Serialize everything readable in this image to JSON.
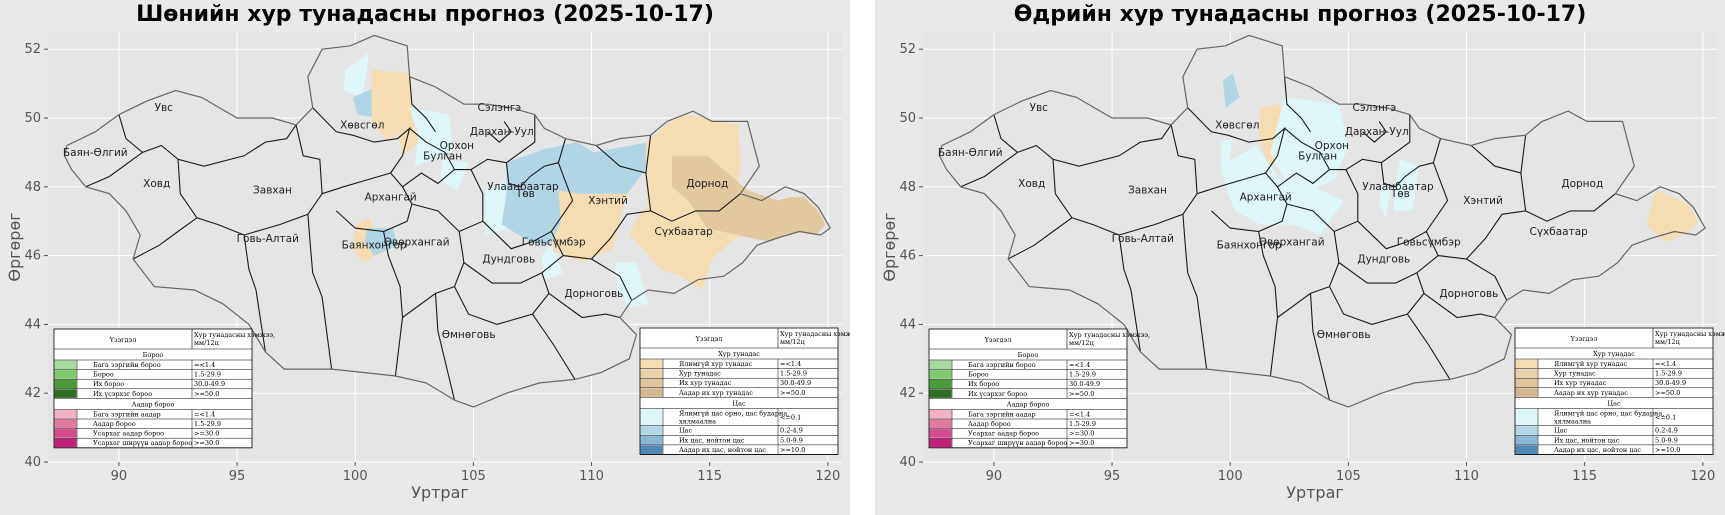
{
  "panels": [
    {
      "id": "night",
      "title": "Шөнийн хур тунадасны прогноз (2025-10-17)",
      "zones": [
        {
          "kind": "snow_light",
          "pts": [
            [
              99.6,
              51.4
            ],
            [
              100.6,
              51.9
            ],
            [
              100.3,
              50.6
            ],
            [
              99.5,
              50.8
            ]
          ]
        },
        {
          "kind": "snow_med",
          "pts": [
            [
              99.9,
              50.6
            ],
            [
              100.9,
              50.9
            ],
            [
              101.0,
              50.0
            ],
            [
              100.1,
              50.1
            ]
          ]
        },
        {
          "kind": "rain_light",
          "pts": [
            [
              100.7,
              51.4
            ],
            [
              102.3,
              51.3
            ],
            [
              102.4,
              50.0
            ],
            [
              101.4,
              49.3
            ],
            [
              100.7,
              49.9
            ]
          ]
        },
        {
          "kind": "rain_light",
          "pts": [
            [
              102.3,
              50.2
            ],
            [
              102.7,
              49.3
            ],
            [
              102.0,
              48.9
            ],
            [
              101.8,
              49.6
            ]
          ]
        },
        {
          "kind": "snow_light",
          "pts": [
            [
              102.3,
              50.3
            ],
            [
              104.0,
              50.1
            ],
            [
              104.1,
              49.0
            ],
            [
              102.5,
              48.6
            ],
            [
              102.7,
              49.5
            ]
          ]
        },
        {
          "kind": "snow_light",
          "pts": [
            [
              103.7,
              48.8
            ],
            [
              104.8,
              48.7
            ],
            [
              104.3,
              47.9
            ],
            [
              103.6,
              48.2
            ]
          ]
        },
        {
          "kind": "snow_light",
          "pts": [
            [
              105.5,
              47.9
            ],
            [
              106.8,
              48.3
            ],
            [
              106.5,
              46.8
            ],
            [
              105.5,
              46.6
            ]
          ]
        },
        {
          "kind": "snow_med",
          "pts": [
            [
              106.4,
              48.7
            ],
            [
              108.0,
              49.1
            ],
            [
              109.4,
              49.3
            ],
            [
              110.1,
              49.0
            ],
            [
              112.4,
              49.3
            ],
            [
              112.4,
              48.6
            ],
            [
              111.5,
              47.8
            ],
            [
              109.3,
              47.2
            ],
            [
              108.3,
              46.3
            ],
            [
              107.4,
              46.4
            ],
            [
              106.2,
              46.9
            ],
            [
              106.4,
              47.8
            ]
          ]
        },
        {
          "kind": "rain_light",
          "pts": [
            [
              108.6,
              47.9
            ],
            [
              109.5,
              47.8
            ],
            [
              111.5,
              47.8
            ],
            [
              110.9,
              46.2
            ],
            [
              109.6,
              45.8
            ],
            [
              108.2,
              46.2
            ],
            [
              108.7,
              47.0
            ]
          ]
        },
        {
          "kind": "snow_light",
          "pts": [
            [
              108.3,
              46.3
            ],
            [
              108.8,
              45.5
            ],
            [
              108.0,
              45.3
            ],
            [
              107.9,
              46.0
            ]
          ]
        },
        {
          "kind": "snow_light",
          "pts": [
            [
              111.0,
              45.8
            ],
            [
              111.9,
              45.8
            ],
            [
              112.4,
              44.6
            ],
            [
              111.6,
              44.5
            ],
            [
              111.1,
              45.0
            ]
          ]
        },
        {
          "kind": "rain_light",
          "pts": [
            [
              112.3,
              49.3
            ],
            [
              113.5,
              50.0
            ],
            [
              114.0,
              50.1
            ],
            [
              116.2,
              49.8
            ],
            [
              116.3,
              48.6
            ],
            [
              116.0,
              47.5
            ],
            [
              114.8,
              46.6
            ],
            [
              114.0,
              47.0
            ],
            [
              112.4,
              47.1
            ],
            [
              112.3,
              48.5
            ]
          ]
        },
        {
          "kind": "rain_light",
          "pts": [
            [
              112.7,
              47.5
            ],
            [
              114.3,
              47.2
            ],
            [
              116.3,
              47.0
            ],
            [
              117.3,
              47.0
            ],
            [
              115.9,
              46.4
            ],
            [
              115.1,
              45.9
            ],
            [
              114.7,
              45.0
            ],
            [
              113.8,
              45.4
            ],
            [
              112.9,
              45.6
            ],
            [
              112.2,
              46.2
            ],
            [
              111.6,
              46.6
            ],
            [
              112.1,
              47.3
            ]
          ]
        },
        {
          "kind": "rain_med",
          "pts": [
            [
              113.4,
              48.9
            ],
            [
              114.9,
              48.9
            ],
            [
              116.6,
              47.9
            ],
            [
              117.9,
              47.6
            ],
            [
              118.4,
              47.7
            ],
            [
              119.0,
              47.7
            ],
            [
              119.6,
              47.3
            ],
            [
              119.9,
              46.9
            ],
            [
              119.5,
              46.6
            ],
            [
              118.7,
              46.7
            ],
            [
              117.6,
              46.4
            ],
            [
              116.8,
              46.5
            ],
            [
              114.9,
              46.8
            ],
            [
              114.1,
              47.6
            ],
            [
              113.4,
              48.0
            ]
          ]
        },
        {
          "kind": "rain_light",
          "pts": [
            [
              100.0,
              46.9
            ],
            [
              100.6,
              47.1
            ],
            [
              101.2,
              46.1
            ],
            [
              100.3,
              45.8
            ],
            [
              99.9,
              46.2
            ]
          ]
        },
        {
          "kind": "snow_med",
          "pts": [
            [
              100.5,
              46.8
            ],
            [
              101.6,
              46.8
            ],
            [
              101.8,
              46.3
            ],
            [
              100.8,
              46.0
            ],
            [
              100.4,
              46.4
            ]
          ]
        }
      ]
    },
    {
      "id": "day",
      "title": "Өдрийн хур тунадасны прогноз (2025-10-17)",
      "zones": [
        {
          "kind": "snow_med",
          "pts": [
            [
              99.7,
              51.1
            ],
            [
              100.1,
              51.3
            ],
            [
              100.4,
              50.6
            ],
            [
              99.8,
              50.3
            ]
          ]
        },
        {
          "kind": "rain_light",
          "pts": [
            [
              101.3,
              50.3
            ],
            [
              102.1,
              50.4
            ],
            [
              102.4,
              49.0
            ],
            [
              101.6,
              48.6
            ],
            [
              101.2,
              49.5
            ]
          ]
        },
        {
          "kind": "snow_light",
          "pts": [
            [
              102.3,
              50.6
            ],
            [
              104.6,
              50.4
            ],
            [
              105.0,
              49.2
            ],
            [
              104.4,
              48.2
            ],
            [
              103.4,
              47.9
            ],
            [
              102.4,
              48.1
            ],
            [
              101.7,
              49.0
            ]
          ]
        },
        {
          "kind": "snow_light",
          "pts": [
            [
              99.6,
              49.3
            ],
            [
              100.1,
              49.4
            ],
            [
              99.9,
              48.5
            ],
            [
              99.6,
              48.6
            ]
          ]
        },
        {
          "kind": "snow_light",
          "pts": [
            [
              99.6,
              48.6
            ],
            [
              101.1,
              49.2
            ],
            [
              102.1,
              48.2
            ],
            [
              103.5,
              48.0
            ],
            [
              104.8,
              47.6
            ],
            [
              103.8,
              46.6
            ],
            [
              102.7,
              46.9
            ],
            [
              101.3,
              46.9
            ],
            [
              100.2,
              47.3
            ],
            [
              99.9,
              47.8
            ]
          ]
        },
        {
          "kind": "snow_light",
          "pts": [
            [
              107.2,
              48.8
            ],
            [
              108.0,
              48.6
            ],
            [
              107.7,
              47.3
            ],
            [
              106.9,
              47.3
            ],
            [
              107.0,
              48.1
            ]
          ]
        },
        {
          "kind": "snow_light",
          "pts": [
            [
              106.4,
              48.1
            ],
            [
              106.8,
              48.0
            ],
            [
              106.6,
              47.1
            ],
            [
              106.3,
              47.5
            ]
          ]
        },
        {
          "kind": "rain_light",
          "pts": [
            [
              118.0,
              47.9
            ],
            [
              119.4,
              47.5
            ],
            [
              119.8,
              47.0
            ],
            [
              119.2,
              46.6
            ],
            [
              118.4,
              46.4
            ],
            [
              117.6,
              46.9
            ]
          ]
        }
      ]
    }
  ],
  "axes": {
    "xlabel": "Уртраг",
    "ylabel": "Өргөрөг",
    "xlim": [
      87,
      120.6
    ],
    "ylim": [
      40,
      52.5
    ],
    "xticks": [
      90,
      95,
      100,
      105,
      110,
      115,
      120
    ],
    "yticks": [
      40,
      42,
      44,
      46,
      48,
      50,
      52
    ]
  },
  "provinces": [
    {
      "name": "Увс",
      "lon": 91.9,
      "lat": 50.2
    },
    {
      "name": "Баян-Өлгий",
      "lon": 89.0,
      "lat": 48.9
    },
    {
      "name": "Ховд",
      "lon": 91.6,
      "lat": 48.0
    },
    {
      "name": "Завхан",
      "lon": 96.5,
      "lat": 47.8
    },
    {
      "name": "Говь-Алтай",
      "lon": 96.3,
      "lat": 46.4
    },
    {
      "name": "Хөвсгөл",
      "lon": 100.3,
      "lat": 49.7
    },
    {
      "name": "Архангай",
      "lon": 101.5,
      "lat": 47.6
    },
    {
      "name": "Булган",
      "lon": 103.7,
      "lat": 48.8
    },
    {
      "name": "Орхон",
      "lon": 104.3,
      "lat": 49.1
    },
    {
      "name": "Сэлэнгэ",
      "lon": 106.1,
      "lat": 50.2
    },
    {
      "name": "Дархан-Уул",
      "lon": 106.2,
      "lat": 49.5
    },
    {
      "name": "Улаанбаатар",
      "lon": 107.1,
      "lat": 47.9
    },
    {
      "name": "Төв",
      "lon": 107.2,
      "lat": 47.7
    },
    {
      "name": "Хэнтий",
      "lon": 110.7,
      "lat": 47.5
    },
    {
      "name": "Дорнод",
      "lon": 114.9,
      "lat": 48.0
    },
    {
      "name": "Сүхбаатар",
      "lon": 113.9,
      "lat": 46.6
    },
    {
      "name": "Өвөрхангай",
      "lon": 102.6,
      "lat": 46.3
    },
    {
      "name": "Баянхонгор",
      "lon": 100.8,
      "lat": 46.2
    },
    {
      "name": "Говьсүмбэр",
      "lon": 108.4,
      "lat": 46.3
    },
    {
      "name": "Дундговь",
      "lon": 106.5,
      "lat": 45.8
    },
    {
      "name": "Дорноговь",
      "lon": 110.1,
      "lat": 44.8
    },
    {
      "name": "Өмнөговь",
      "lon": 104.8,
      "lat": 43.6
    }
  ],
  "colors": {
    "ocean": "#e5e5e5",
    "grid": "#ffffff",
    "land": "#e5e5e5",
    "border": "#1a1a1a",
    "outer": "#666666",
    "rain_light": "#f5dcb3",
    "rain_med": "#e3c79f",
    "snow_light": "#ddf7f9",
    "snow_med": "#b0d6e6"
  },
  "legend_left": {
    "header_col1": "Үзэгдэл",
    "header_col2": "Хур тунадасны хэмжээ, мм/12ц",
    "sections": [
      {
        "title": "Бороо",
        "rows": [
          {
            "label": "Бага зэргийн бороо",
            "value": "=<1.4",
            "color": "#a6d99c"
          },
          {
            "label": "Бороо",
            "value": "1.5-29.9",
            "color": "#7ec96b"
          },
          {
            "label": "Их бороо",
            "value": "30.0-49.9",
            "color": "#4a9a3a"
          },
          {
            "label": "Их үсэрхэг бороо",
            "value": ">=50.0",
            "color": "#2d6e22"
          }
        ]
      },
      {
        "title": "Аадар бороо",
        "rows": [
          {
            "label": "Бага зэргийн аадар",
            "value": "=<1.4",
            "color": "#f4b3c5"
          },
          {
            "label": "Аадар бороо",
            "value": "1.5-29.9",
            "color": "#e27aa0"
          },
          {
            "label": "Усархаг аадар бороо",
            "value": ">=30.0",
            "color": "#d54a8a"
          },
          {
            "label": "Усархаг шиpүүн аадар бороо",
            "value": ">=30.0",
            "color": "#c2207a"
          }
        ]
      }
    ]
  },
  "legend_right": {
    "header_col1": "Үзэгдэл",
    "header_col2": "Хур тунадасны хэмжээ, мм/12ц",
    "sections": [
      {
        "title": "Хур тунадас",
        "rows": [
          {
            "label": "Ялимгүй хур тунадас",
            "value": "=<1.4",
            "color": "#f5dcb3"
          },
          {
            "label": "Хур тунадас",
            "value": "1.5-29.9",
            "color": "#ead0a8"
          },
          {
            "label": "Их хур тунадас",
            "value": "30.0-49.9",
            "color": "#e0c49c"
          },
          {
            "label": "Аадар их хур тунадас",
            "value": ">=50.0",
            "color": "#d6b890"
          }
        ]
      },
      {
        "title": "Цас",
        "rows": [
          {
            "label": "Ялимгүй цас орно, цас бударна, хялмаална",
            "value": "<=0.1",
            "color": "#ddf7f9"
          },
          {
            "label": "Цас",
            "value": "0.2-4.9",
            "color": "#b0d6e6"
          },
          {
            "label": "Их цас, нойтон цас",
            "value": "5.0-9.9",
            "color": "#8bb7d6"
          },
          {
            "label": "Аадар их цас, нойтон цас",
            "value": ">=10.0",
            "color": "#4f87b5"
          }
        ]
      }
    ]
  }
}
